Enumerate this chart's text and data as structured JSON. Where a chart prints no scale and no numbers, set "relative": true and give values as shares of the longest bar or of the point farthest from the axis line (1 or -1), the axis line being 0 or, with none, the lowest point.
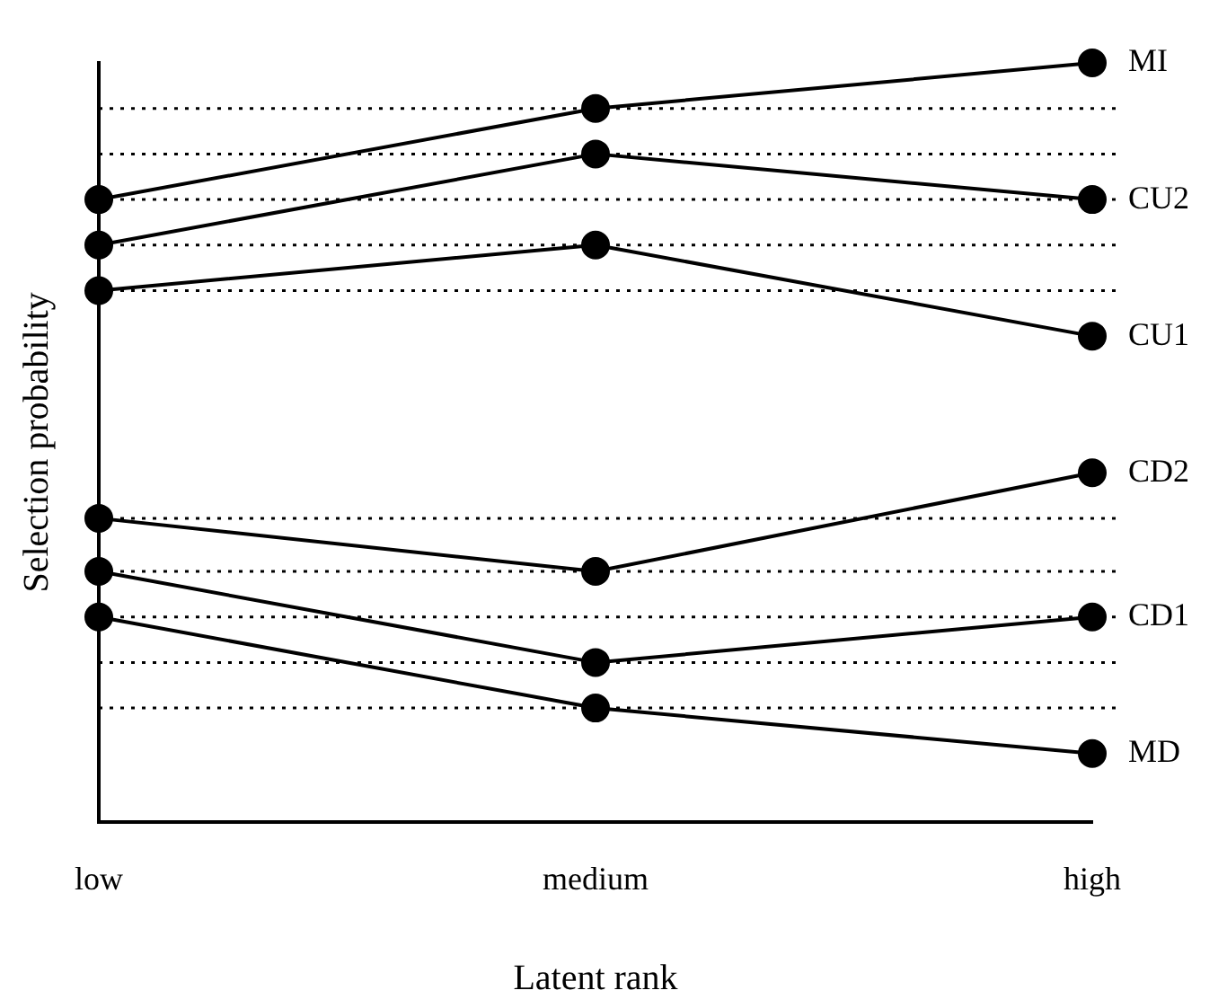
{
  "chart_data": {
    "type": "line",
    "relative": true,
    "xlabel": "Latent rank",
    "ylabel": "Selection probability",
    "categories": [
      "low",
      "medium",
      "high"
    ],
    "legend": false,
    "grid": false,
    "marker": "circle",
    "line_style": "solid",
    "series": [
      {
        "name": "MI",
        "color": "#000000",
        "values": [
          0.82,
          0.94,
          1
        ]
      },
      {
        "name": "CU2",
        "color": "#000000",
        "values": [
          0.76,
          0.88,
          0.82
        ]
      },
      {
        "name": "CU1",
        "color": "#000000",
        "values": [
          0.7,
          0.76,
          0.64
        ]
      },
      {
        "name": "CD2",
        "color": "#000000",
        "values": [
          0.4,
          0.33,
          0.46
        ]
      },
      {
        "name": "CD1",
        "color": "#000000",
        "values": [
          0.33,
          0.21,
          0.27
        ]
      },
      {
        "name": "MD",
        "color": "#000000",
        "values": [
          0.27,
          0.15,
          0.09
        ]
      }
    ],
    "ref_lines": [
      {
        "axis": "y",
        "value": 0.94,
        "color": "#000000",
        "line_style": "dotted"
      },
      {
        "axis": "y",
        "value": 0.88,
        "color": "#000000",
        "line_style": "dotted"
      },
      {
        "axis": "y",
        "value": 0.82,
        "color": "#000000",
        "line_style": "dotted"
      },
      {
        "axis": "y",
        "value": 0.76,
        "color": "#000000",
        "line_style": "dotted"
      },
      {
        "axis": "y",
        "value": 0.7,
        "color": "#000000",
        "line_style": "dotted"
      },
      {
        "axis": "y",
        "value": 0.4,
        "color": "#000000",
        "line_style": "dotted"
      },
      {
        "axis": "y",
        "value": 0.33,
        "color": "#000000",
        "line_style": "dotted"
      },
      {
        "axis": "y",
        "value": 0.27,
        "color": "#000000",
        "line_style": "dotted"
      },
      {
        "axis": "y",
        "value": 0.21,
        "color": "#000000",
        "line_style": "dotted"
      },
      {
        "axis": "y",
        "value": 0.15,
        "color": "#000000",
        "line_style": "dotted"
      }
    ]
  }
}
